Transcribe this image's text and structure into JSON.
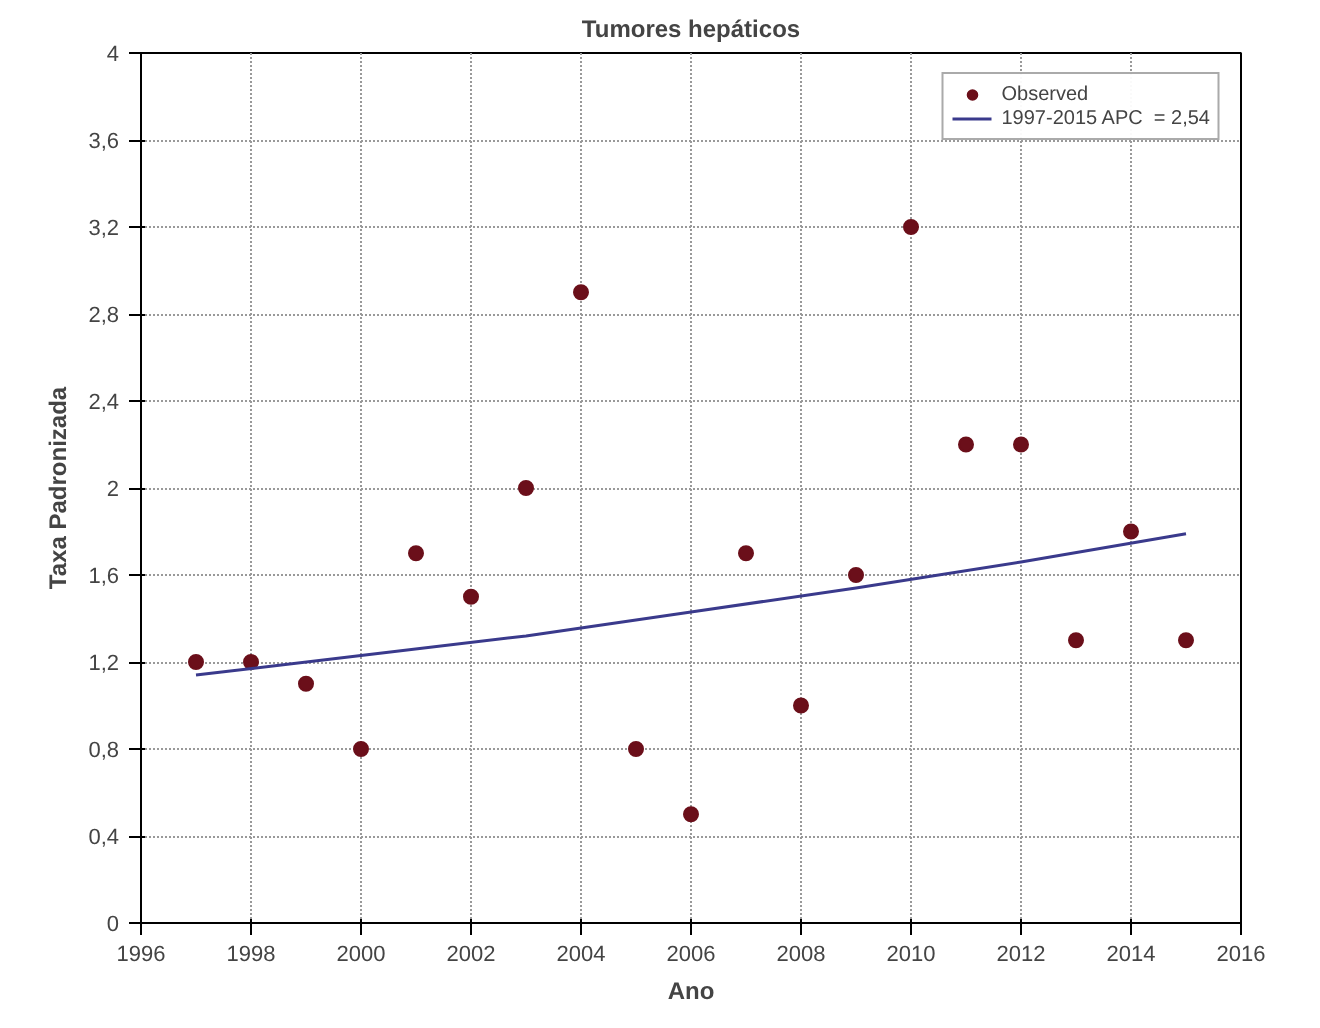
{
  "chart_data": {
    "type": "scatter",
    "title": "Tumores hepáticos",
    "xlabel": "Ano",
    "ylabel": "Taxa Padronizada",
    "xlim": [
      1996,
      2016
    ],
    "xticks": [
      1996,
      1998,
      2000,
      2002,
      2004,
      2006,
      2008,
      2010,
      2012,
      2014,
      2016
    ],
    "ylim": [
      0,
      4
    ],
    "yticks": [
      0,
      {
        "value": 0.4,
        "label": "0,4"
      },
      {
        "value": 0.8,
        "label": "0,8"
      },
      {
        "value": 1.2,
        "label": "1,2"
      },
      {
        "value": 1.6,
        "label": "1,6"
      },
      2,
      {
        "value": 2.4,
        "label": "2,4"
      },
      {
        "value": 2.8,
        "label": "2,8"
      },
      {
        "value": 3.2,
        "label": "3,2"
      },
      {
        "value": 3.6,
        "label": "3,6"
      },
      4
    ],
    "grid": true,
    "legend": "top right",
    "series": [
      {
        "name": "Observed",
        "marker": "circle",
        "color": "#6b0f1a",
        "x": [
          1997,
          1998,
          1999,
          2000,
          2001,
          2002,
          2003,
          2004,
          2005,
          2006,
          2007,
          2008,
          2009,
          2010,
          2011,
          2012,
          2013,
          2014,
          2015
        ],
        "values": [
          1.2,
          1.2,
          1.1,
          0.8,
          1.7,
          1.5,
          2.0,
          2.9,
          0.8,
          0.5,
          1.7,
          1.0,
          1.6,
          3.2,
          2.2,
          2.2,
          1.3,
          1.8,
          1.3
        ]
      },
      {
        "name": "1997-2015 APC  = 2,54",
        "type": "line",
        "color": "#3a3a8c",
        "line_style": "solid",
        "x": [
          1997,
          2000,
          2003,
          2006,
          2009,
          2012,
          2015
        ],
        "values": [
          1.14,
          1.23,
          1.32,
          1.43,
          1.54,
          1.66,
          1.79
        ]
      }
    ]
  }
}
